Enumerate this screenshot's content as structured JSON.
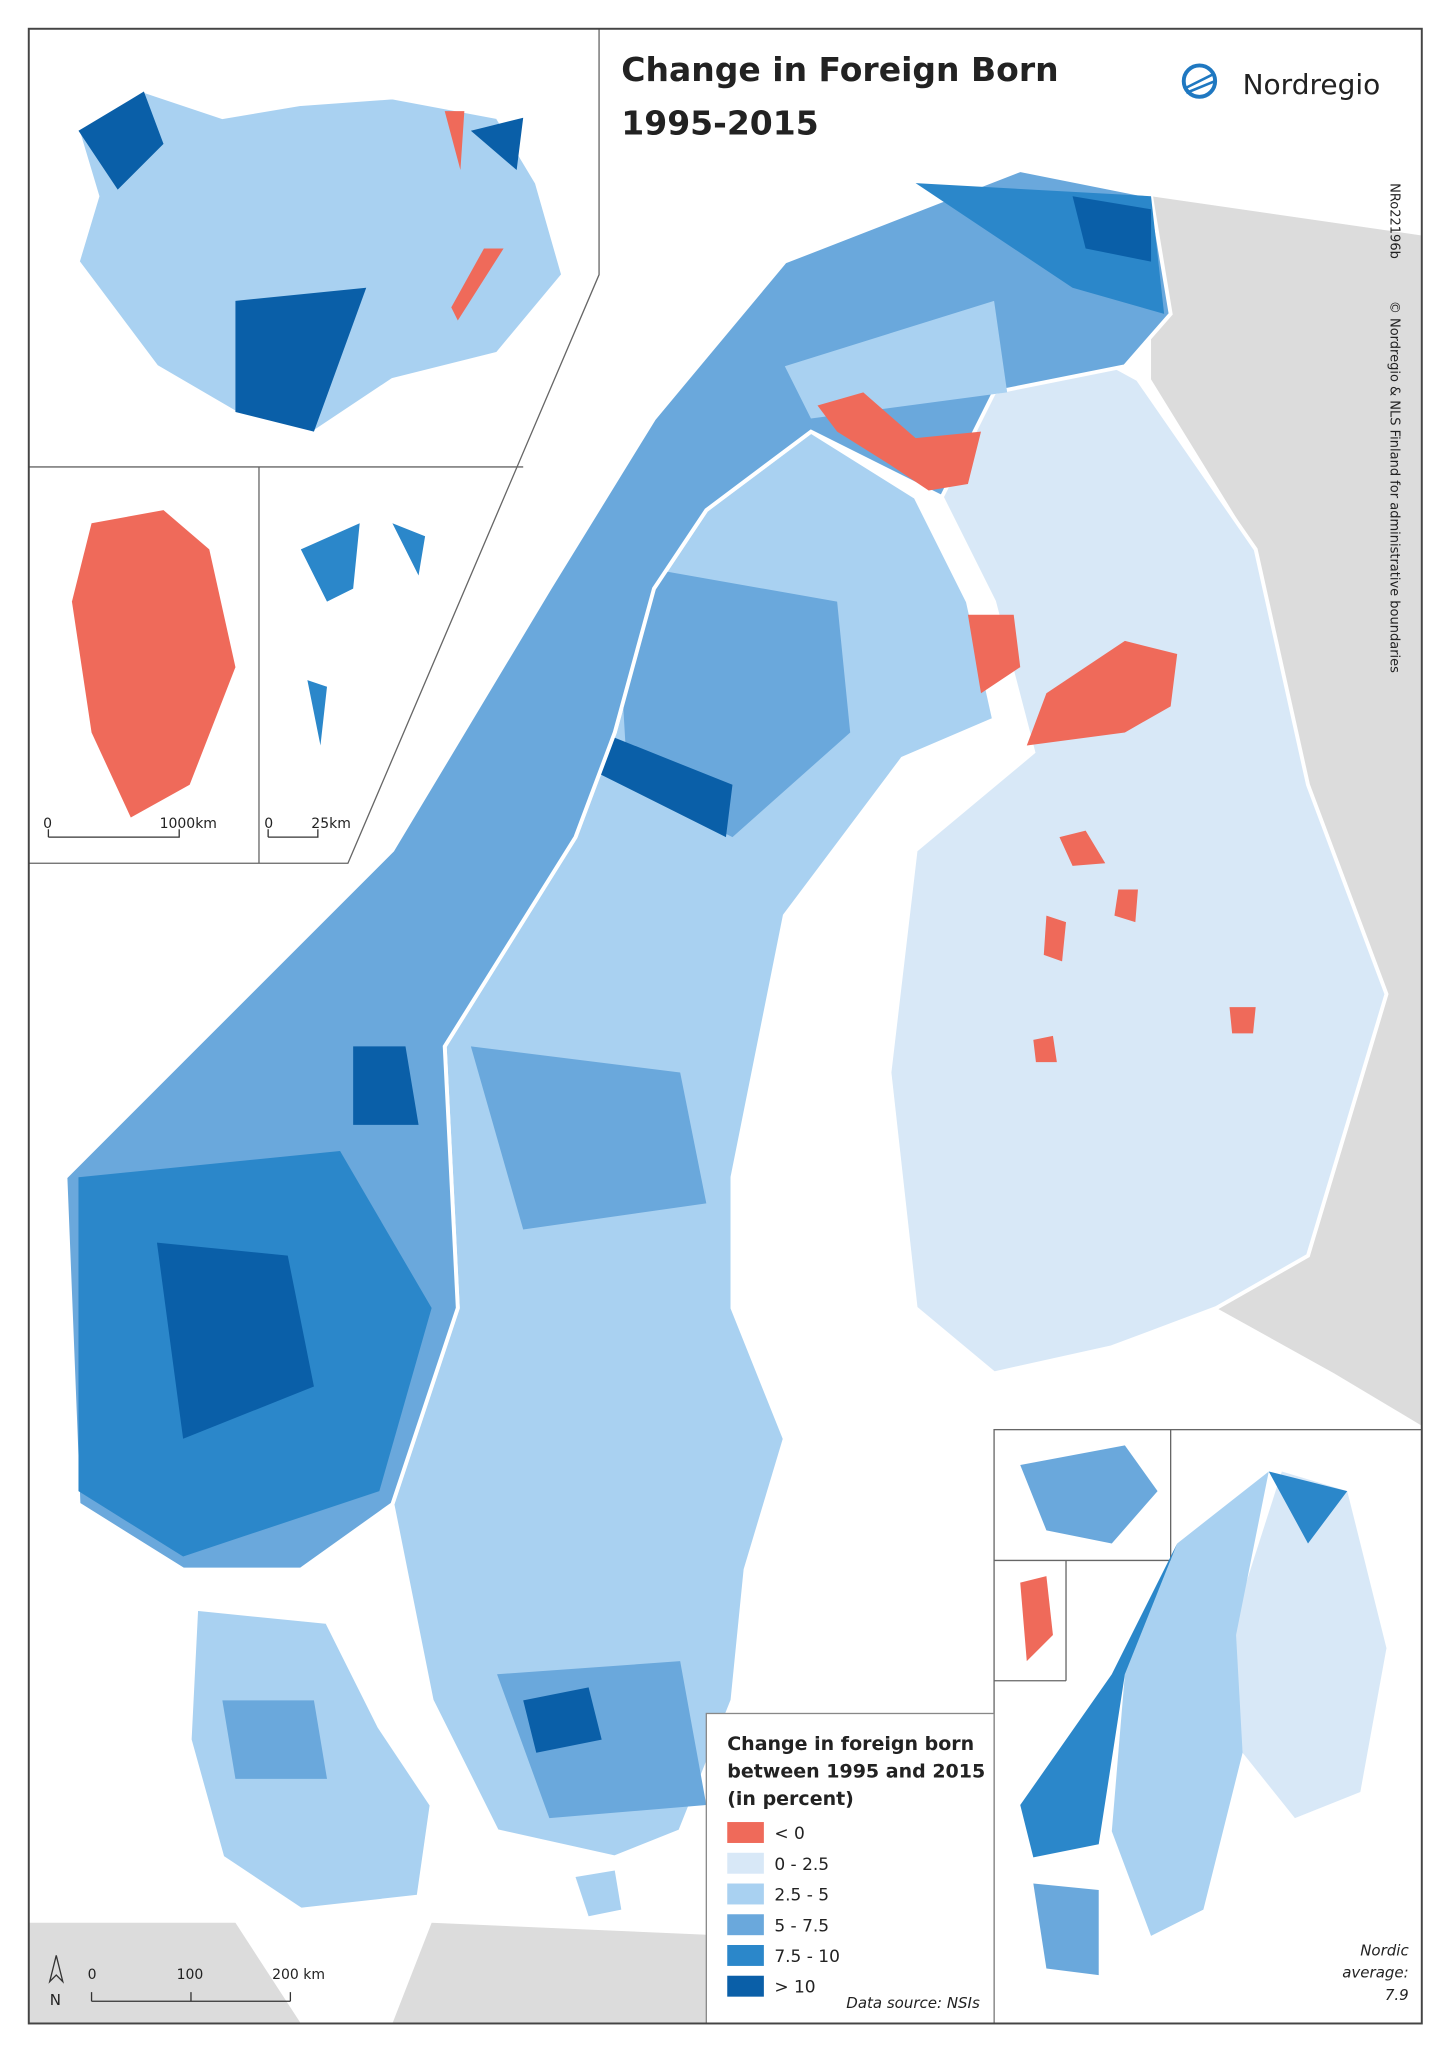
{
  "header": {
    "title": "Change in Foreign Born",
    "subtitle": "1995-2015",
    "logo": "Nordregio"
  },
  "side_text": {
    "code": "NRo22196b",
    "credit": "© Nordregio & NLS Finland for administrative boundaries"
  },
  "legend": {
    "title": [
      "Change in foreign born",
      "between 1995 and 2015",
      "(in percent)"
    ],
    "items": [
      {
        "label": "< 0",
        "color": "#ef6a5a"
      },
      {
        "label": "0 - 2.5",
        "color": "#d8e8f7"
      },
      {
        "label": "2.5 - 5",
        "color": "#a9d1f1"
      },
      {
        "label": "5 - 7.5",
        "color": "#6aa8dc"
      },
      {
        "label": "7.5 - 10",
        "color": "#2b87ca"
      },
      {
        "label": "> 10",
        "color": "#0a5fa8"
      }
    ]
  },
  "scale_bars": {
    "greenland": [
      "0",
      "1000km"
    ],
    "svalbard": [
      "0",
      "25km"
    ],
    "main": [
      "0",
      "100",
      "200 km"
    ]
  },
  "north": "N",
  "source": "Data source: NSIs",
  "nordic_average": {
    "label": [
      "Nordic",
      "average:"
    ],
    "value": 7.9
  }
}
